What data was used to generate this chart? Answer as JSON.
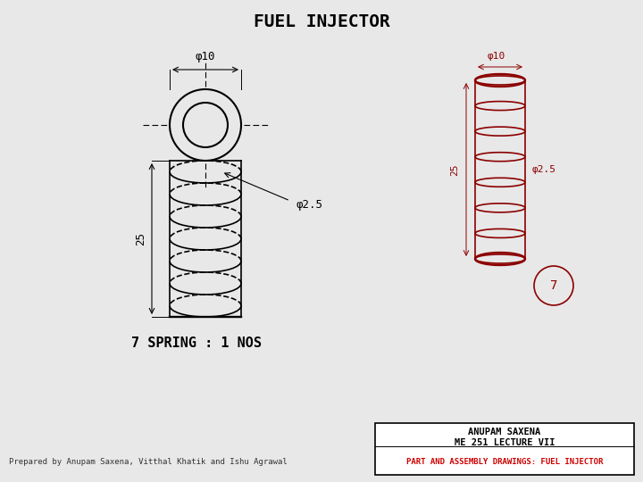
{
  "title": "FUEL INJECTOR",
  "bg_color": "#e8e8e8",
  "title_fontsize": 14,
  "title_fontweight": "bold",
  "bottom_left_text": "Prepared by Anupam Saxena, Vitthal Khatik and Ishu Agrawal",
  "bottom_right_line1": "ANUPAM SAXENA",
  "bottom_right_line2": "ME 251 LECTURE VII",
  "bottom_right_line3": "PART AND ASSEMBLY DRAWINGS: FUEL INJECTOR",
  "label_phi10": "φ10",
  "label_phi25": "φ2.5",
  "label_25": "25",
  "label_spring": "7 SPRING : 1 NOS",
  "line_color": "#000000",
  "dark_red": "#8B0000",
  "spring_color": "#111111"
}
